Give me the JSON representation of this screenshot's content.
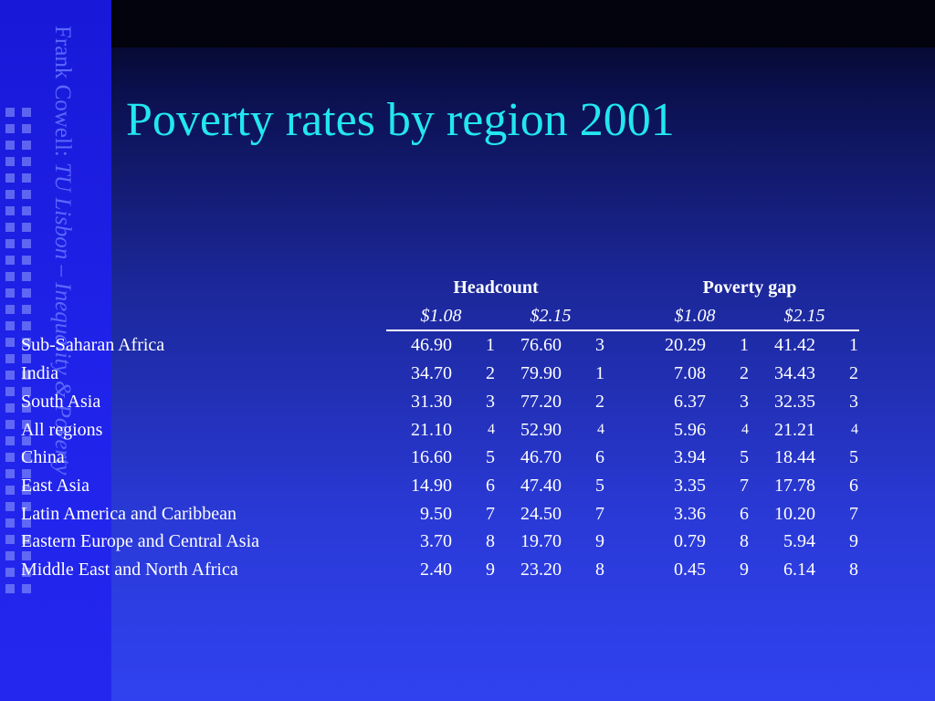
{
  "sidebar": {
    "author": "Frank Cowell:",
    "course": "TU Lisbon – Inequality & Poverty"
  },
  "slide": {
    "title": "Poverty rates by region 2001"
  },
  "table": {
    "group_headers": [
      "Headcount",
      "Poverty gap"
    ],
    "sub_headers": [
      "$1.08",
      "$2.15",
      "$1.08",
      "$2.15"
    ],
    "rows": [
      {
        "region": "Sub-Saharan Africa",
        "hc108": "46.90",
        "r1": "1",
        "hc215": "76.60",
        "r2": "3",
        "pg108": "20.29",
        "r3": "1",
        "pg215": "41.42",
        "r4": "1"
      },
      {
        "region": "India",
        "hc108": "34.70",
        "r1": "2",
        "hc215": "79.90",
        "r2": "1",
        "pg108": "7.08",
        "r3": "2",
        "pg215": "34.43",
        "r4": "2"
      },
      {
        "region": "South Asia",
        "hc108": "31.30",
        "r1": "3",
        "hc215": "77.20",
        "r2": "2",
        "pg108": "6.37",
        "r3": "3",
        "pg215": "32.35",
        "r4": "3"
      },
      {
        "region": "All regions",
        "hc108": "21.10",
        "r1": "4",
        "hc215": "52.90",
        "r2": "4",
        "pg108": "5.96",
        "r3": "4",
        "pg215": "21.21",
        "r4": "4"
      },
      {
        "region": "China",
        "hc108": "16.60",
        "r1": "5",
        "hc215": "46.70",
        "r2": "6",
        "pg108": "3.94",
        "r3": "5",
        "pg215": "18.44",
        "r4": "5"
      },
      {
        "region": "East Asia",
        "hc108": "14.90",
        "r1": "6",
        "hc215": "47.40",
        "r2": "5",
        "pg108": "3.35",
        "r3": "7",
        "pg215": "17.78",
        "r4": "6"
      },
      {
        "region": "Latin America and Caribbean",
        "hc108": "9.50",
        "r1": "7",
        "hc215": "24.50",
        "r2": "7",
        "pg108": "3.36",
        "r3": "6",
        "pg215": "10.20",
        "r4": "7"
      },
      {
        "region": "Eastern Europe and Central Asia",
        "hc108": "3.70",
        "r1": "8",
        "hc215": "19.70",
        "r2": "9",
        "pg108": "0.79",
        "r3": "8",
        "pg215": "5.94",
        "r4": "9"
      },
      {
        "region": "Middle East and North Africa",
        "hc108": "2.40",
        "r1": "9",
        "hc215": "23.20",
        "r2": "8",
        "pg108": "0.45",
        "r3": "9",
        "pg215": "6.14",
        "r4": "8"
      }
    ]
  }
}
